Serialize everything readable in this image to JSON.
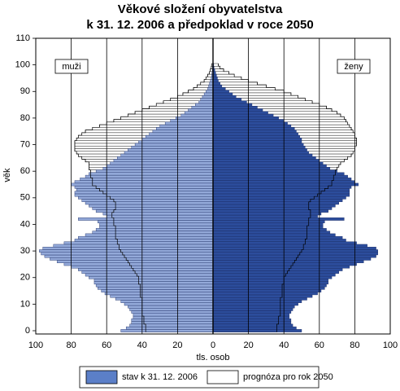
{
  "chart_data": {
    "type": "pyramid",
    "title": [
      "Věkové složení obyvatelstva",
      "k 31. 12. 2006 a předpoklad v roce 2050"
    ],
    "xlabel": "tls. osob",
    "ylabel": "věk",
    "groups": [
      "muži",
      "ženy"
    ],
    "ages": [
      0,
      1,
      2,
      3,
      4,
      5,
      6,
      7,
      8,
      9,
      10,
      11,
      12,
      13,
      14,
      15,
      16,
      17,
      18,
      19,
      20,
      21,
      22,
      23,
      24,
      25,
      26,
      27,
      28,
      29,
      30,
      31,
      32,
      33,
      34,
      35,
      36,
      37,
      38,
      39,
      40,
      41,
      42,
      43,
      44,
      45,
      46,
      47,
      48,
      49,
      50,
      51,
      52,
      53,
      54,
      55,
      56,
      57,
      58,
      59,
      60,
      61,
      62,
      63,
      64,
      65,
      66,
      67,
      68,
      69,
      70,
      71,
      72,
      73,
      74,
      75,
      76,
      77,
      78,
      79,
      80,
      81,
      82,
      83,
      84,
      85,
      86,
      87,
      88,
      89,
      90,
      91,
      92,
      93,
      94,
      95,
      96,
      97,
      98,
      99,
      100
    ],
    "series": [
      {
        "name": "stav k 31. 12. 2006",
        "color": "#5b7fc8",
        "side_colors": [
          "#93a9d9",
          "#2c4d9c"
        ],
        "values": [
          [
            52,
            49,
            47,
            46,
            46,
            45,
            45,
            46,
            47,
            48,
            50,
            52,
            55,
            58,
            61,
            63,
            65,
            66,
            67,
            67,
            70,
            72,
            74,
            76,
            80,
            84,
            88,
            92,
            95,
            97,
            98,
            96,
            90,
            84,
            78,
            76,
            72,
            68,
            66,
            64,
            64,
            65,
            76,
            60,
            62,
            66,
            68,
            70,
            72,
            74,
            76,
            78,
            78,
            77,
            78,
            80,
            78,
            75,
            72,
            70,
            66,
            62,
            60,
            58,
            56,
            54,
            52,
            50,
            48,
            46,
            44,
            42,
            40,
            38,
            36,
            34,
            32,
            30,
            27,
            24,
            21,
            18,
            16,
            14,
            12,
            10,
            8,
            7,
            6,
            5,
            4,
            3,
            2.5,
            2,
            1.5,
            1,
            0.8,
            0.6,
            0.4,
            0.3,
            0.2
          ],
          [
            50,
            47,
            45,
            44,
            44,
            43,
            43,
            44,
            45,
            46,
            48,
            50,
            53,
            56,
            59,
            61,
            63,
            64,
            65,
            65,
            67,
            69,
            71,
            73,
            77,
            81,
            85,
            89,
            92,
            93,
            93,
            92,
            87,
            81,
            75,
            73,
            69,
            66,
            64,
            62,
            62,
            63,
            74,
            59,
            61,
            65,
            67,
            69,
            71,
            73,
            75,
            77,
            77,
            77,
            78,
            82,
            80,
            78,
            76,
            74,
            70,
            66,
            64,
            62,
            60,
            58,
            56,
            54,
            53,
            52,
            51,
            50,
            50,
            49,
            48,
            47,
            46,
            44,
            42,
            40,
            37,
            34,
            31,
            28,
            25,
            22,
            19,
            16,
            13,
            11,
            9,
            7,
            5,
            4,
            3,
            2.5,
            2,
            1.5,
            1,
            0.6,
            0.4
          ]
        ]
      },
      {
        "name": "prognóza pro rok 2050",
        "color": "#ffffff",
        "side_colors": [
          "#ffffff",
          "#ffffff"
        ],
        "values": [
          [
            38,
            38,
            38,
            39,
            39,
            39,
            40,
            40,
            40,
            40,
            40,
            40,
            40,
            41,
            41,
            41,
            41,
            41,
            42,
            42,
            42,
            43,
            44,
            45,
            46,
            47,
            48,
            49,
            50,
            51,
            52,
            53,
            53,
            54,
            54,
            55,
            55,
            55,
            55,
            55,
            56,
            56,
            56,
            57,
            57,
            56,
            55,
            55,
            55,
            56,
            58,
            60,
            62,
            64,
            66,
            68,
            68,
            68,
            69,
            69,
            69,
            70,
            70,
            70,
            72,
            74,
            76,
            77,
            78,
            78,
            78,
            78,
            77,
            76,
            74,
            72,
            68,
            64,
            60,
            56,
            52,
            48,
            44,
            40,
            36,
            32,
            28,
            24,
            20,
            17,
            14,
            11,
            9,
            7,
            5,
            4,
            3,
            2,
            1.5,
            1,
            0.8
          ],
          [
            36,
            36,
            36,
            37,
            37,
            37,
            38,
            38,
            38,
            38,
            38,
            38,
            38,
            39,
            39,
            39,
            39,
            39,
            40,
            40,
            40,
            41,
            42,
            43,
            44,
            45,
            46,
            47,
            48,
            49,
            50,
            51,
            51,
            52,
            52,
            53,
            53,
            53,
            53,
            53,
            54,
            54,
            54,
            55,
            55,
            55,
            54,
            54,
            54,
            55,
            57,
            59,
            61,
            63,
            65,
            67,
            67,
            68,
            68,
            69,
            69,
            70,
            71,
            72,
            74,
            76,
            78,
            79,
            80,
            80,
            81,
            81,
            81,
            80,
            80,
            79,
            78,
            77,
            76,
            75,
            74,
            72,
            70,
            67,
            64,
            60,
            56,
            52,
            48,
            44,
            40,
            35,
            30,
            25,
            20,
            16,
            12,
            9,
            6,
            4,
            3
          ]
        ]
      }
    ],
    "xlim": [
      -100,
      100
    ],
    "xticks": [
      {
        "value": -100,
        "label": "100"
      },
      {
        "value": -80,
        "label": "80"
      },
      {
        "value": -60,
        "label": "60"
      },
      {
        "value": -40,
        "label": "40"
      },
      {
        "value": -20,
        "label": "20"
      },
      0,
      20,
      40,
      60,
      80,
      100
    ],
    "ylim": [
      0,
      110
    ],
    "yticks": [
      0,
      10,
      20,
      30,
      40,
      50,
      60,
      70,
      80,
      90,
      100,
      110
    ],
    "grid": true
  }
}
